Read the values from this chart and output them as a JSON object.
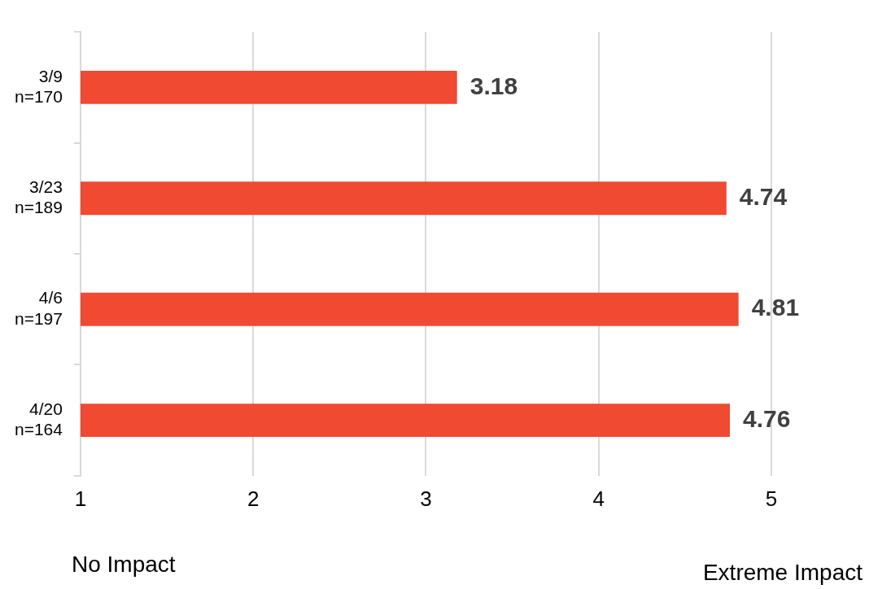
{
  "chart_data": {
    "type": "bar",
    "orientation": "horizontal",
    "categories": [
      "3/9\nn=170",
      "3/23\nn=189",
      "4/6\nn=197",
      "4/20\nn=164"
    ],
    "values": [
      3.18,
      4.74,
      4.81,
      4.76
    ],
    "color": "#f04a32",
    "xlim": [
      1,
      5
    ],
    "xticks": [
      1,
      2,
      3,
      4,
      5
    ],
    "grid": "x",
    "data_labels": true,
    "annotations": [
      "No Impact",
      "Extreme Impact"
    ]
  }
}
